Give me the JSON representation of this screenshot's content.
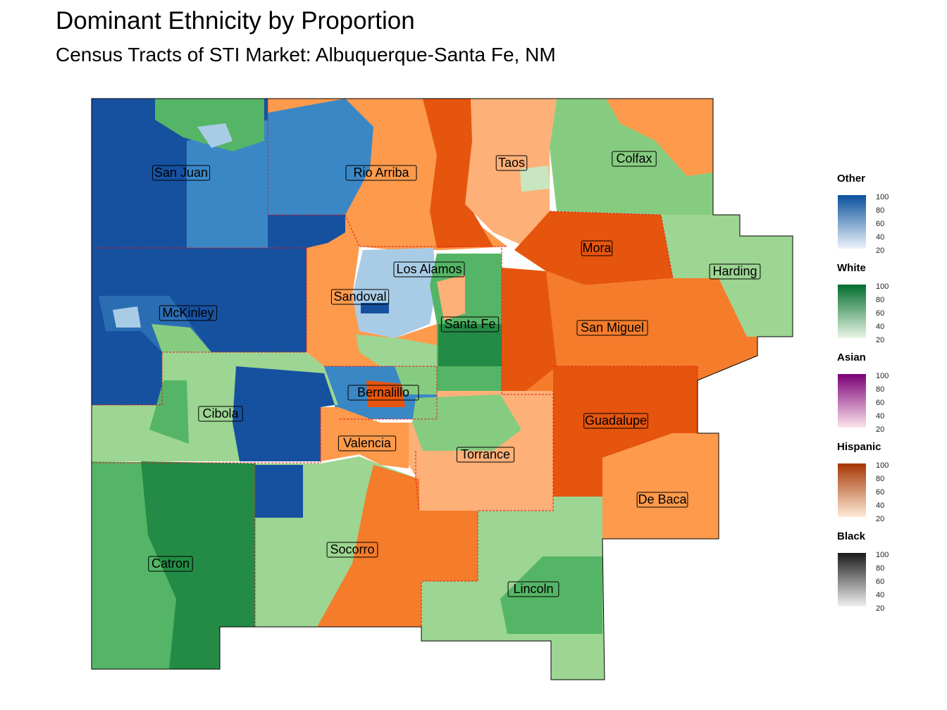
{
  "title": "Dominant Ethnicity by Proportion",
  "subtitle": "Census Tracts of STI Market: Albuquerque-Santa Fe, NM",
  "counties": [
    {
      "name": "San Juan",
      "dominant": "Other"
    },
    {
      "name": "Rio Arriba",
      "dominant": "Hispanic"
    },
    {
      "name": "Taos",
      "dominant": "Hispanic"
    },
    {
      "name": "Colfax",
      "dominant": "White"
    },
    {
      "name": "Mora",
      "dominant": "Hispanic"
    },
    {
      "name": "Harding",
      "dominant": "White"
    },
    {
      "name": "Los Alamos",
      "dominant": "Other"
    },
    {
      "name": "Sandoval",
      "dominant": "Hispanic"
    },
    {
      "name": "McKinley",
      "dominant": "Other"
    },
    {
      "name": "Santa Fe",
      "dominant": "White"
    },
    {
      "name": "San Miguel",
      "dominant": "Hispanic"
    },
    {
      "name": "Bernalillo",
      "dominant": "Hispanic"
    },
    {
      "name": "Cibola",
      "dominant": "Other"
    },
    {
      "name": "Guadalupe",
      "dominant": "Hispanic"
    },
    {
      "name": "Valencia",
      "dominant": "Hispanic"
    },
    {
      "name": "Torrance",
      "dominant": "Hispanic"
    },
    {
      "name": "De Baca",
      "dominant": "Hispanic"
    },
    {
      "name": "Socorro",
      "dominant": "Hispanic"
    },
    {
      "name": "Catron",
      "dominant": "White"
    },
    {
      "name": "Lincoln",
      "dominant": "White"
    }
  ],
  "legend": [
    {
      "title": "Other",
      "low": "#eef4fb",
      "high": "#08519c",
      "ticks": [
        "100",
        "80",
        "60",
        "40",
        "20"
      ]
    },
    {
      "title": "White",
      "low": "#eaf6e6",
      "high": "#006d2c",
      "ticks": [
        "100",
        "80",
        "60",
        "40",
        "20"
      ]
    },
    {
      "title": "Asian",
      "low": "#fde4ec",
      "high": "#7a0177",
      "ticks": [
        "100",
        "80",
        "60",
        "40",
        "20"
      ]
    },
    {
      "title": "Hispanic",
      "low": "#feebd8",
      "high": "#a63603",
      "ticks": [
        "100",
        "80",
        "60",
        "40",
        "20"
      ]
    },
    {
      "title": "Black",
      "low": "#f0f0f0",
      "high": "#1a1a1a",
      "ticks": [
        "100",
        "80",
        "60",
        "40",
        "20"
      ]
    }
  ],
  "colors": {
    "other_dark": "#1651a0",
    "other_mid": "#3a87c6",
    "other_light": "#a9cce6",
    "white_dark": "#238b45",
    "white_mid": "#55b566",
    "white_light": "#9dd592",
    "hisp_dark": "#e6550d",
    "hisp_mid": "#f47c2a",
    "hisp_light": "#fdb078",
    "border": "#e41a1c"
  }
}
